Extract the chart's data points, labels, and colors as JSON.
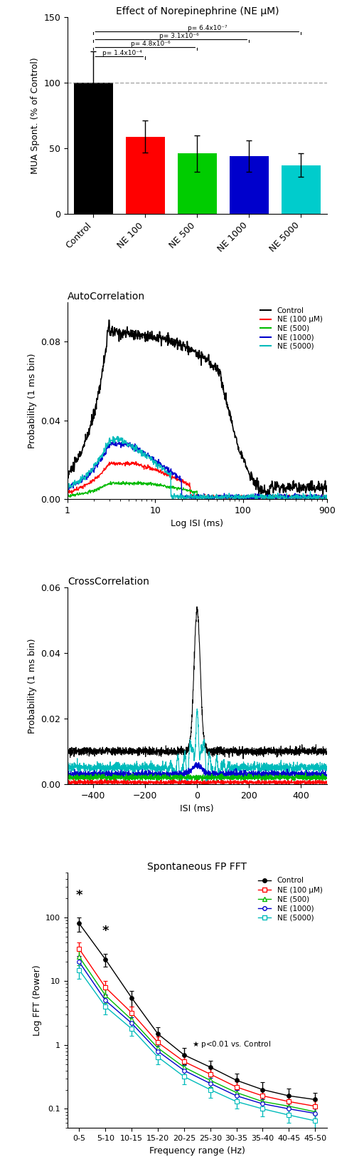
{
  "bar_title": "Effect of Norepinephrine (NE μM)",
  "bar_categories": [
    "Control",
    "NE 100",
    "NE 500",
    "NE 1000",
    "NE 5000"
  ],
  "bar_values": [
    100,
    59,
    46,
    44,
    37
  ],
  "bar_errors": [
    24,
    12,
    14,
    12,
    9
  ],
  "bar_colors": [
    "#000000",
    "#ff0000",
    "#00cc00",
    "#0000cc",
    "#00cccc"
  ],
  "bar_ylabel": "MUA Spont. (% of Control)",
  "bar_ylim": [
    0,
    150
  ],
  "bar_yticks": [
    0,
    50,
    100,
    150
  ],
  "bar_pvalues": [
    "p= 1.4x10⁻⁴",
    "p= 4.8x10⁻⁶",
    "p= 3.1x10⁻⁶",
    "p= 6.4x10⁻⁷"
  ],
  "autocorr_title": "AutoCorrelation",
  "autocorr_ylabel": "Probability (1 ms bin)",
  "autocorr_xlabel": "Log ISI (ms)",
  "autocorr_ylim": [
    0,
    0.1
  ],
  "autocorr_yticks": [
    0.0,
    0.04,
    0.08
  ],
  "crosscorr_title": "CrossCorrelation",
  "crosscorr_ylabel": "Probability (1 ms bin)",
  "crosscorr_xlabel": "ISI (ms)",
  "crosscorr_ylim": [
    0,
    0.06
  ],
  "crosscorr_yticks": [
    0.0,
    0.02,
    0.04,
    0.06
  ],
  "crosscorr_xlim": [
    -500,
    500
  ],
  "fft_title": "Spontaneous FP FFT",
  "fft_ylabel": "Log FFT (Power)",
  "fft_xlabel": "Frequency range (Hz)",
  "fft_categories": [
    "0-5",
    "5-10",
    "10-15",
    "15-20",
    "20-25",
    "25-30",
    "30-35",
    "35-40",
    "40-45",
    "45-50"
  ],
  "fft_control_vals": [
    80,
    22,
    5.5,
    1.5,
    0.7,
    0.45,
    0.28,
    0.2,
    0.16,
    0.14
  ],
  "fft_ne100_vals": [
    32,
    8,
    3.2,
    1.1,
    0.55,
    0.35,
    0.22,
    0.16,
    0.13,
    0.11
  ],
  "fft_ne500_vals": [
    24,
    6,
    2.5,
    0.9,
    0.45,
    0.28,
    0.18,
    0.13,
    0.11,
    0.09
  ],
  "fft_ne1000_vals": [
    20,
    5,
    2.2,
    0.8,
    0.4,
    0.25,
    0.16,
    0.12,
    0.1,
    0.085
  ],
  "fft_ne5000_vals": [
    15,
    4,
    1.8,
    0.65,
    0.32,
    0.2,
    0.13,
    0.1,
    0.08,
    0.065
  ],
  "fft_control_err": [
    20,
    5,
    1.5,
    0.4,
    0.2,
    0.12,
    0.08,
    0.06,
    0.05,
    0.04
  ],
  "fft_ne100_err": [
    8,
    2,
    0.8,
    0.25,
    0.12,
    0.08,
    0.05,
    0.04,
    0.03,
    0.025
  ],
  "fft_ne500_err": [
    6,
    1.5,
    0.6,
    0.2,
    0.1,
    0.06,
    0.04,
    0.03,
    0.025,
    0.02
  ],
  "fft_ne1000_err": [
    5,
    1.2,
    0.5,
    0.18,
    0.09,
    0.055,
    0.035,
    0.027,
    0.022,
    0.018
  ],
  "fft_ne5000_err": [
    4,
    1.0,
    0.4,
    0.15,
    0.08,
    0.05,
    0.03,
    0.024,
    0.019,
    0.016
  ],
  "colors": {
    "control": "#000000",
    "ne100": "#ff0000",
    "ne500": "#00bb00",
    "ne1000": "#0000cc",
    "ne5000": "#00bbbb"
  },
  "legend_labels": [
    "Control",
    "NE (100 μM)",
    "NE (500)",
    "NE (1000)",
    "NE (5000)"
  ]
}
